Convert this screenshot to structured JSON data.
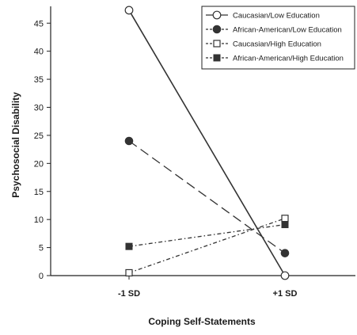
{
  "chart_data": {
    "type": "line",
    "xlabel": "Coping Self-Statements",
    "ylabel": "Psychosocial Disability",
    "categories": [
      "-1 SD",
      "+1 SD"
    ],
    "ylim": [
      0,
      48
    ],
    "yticks": [
      0,
      5,
      10,
      15,
      20,
      25,
      30,
      35,
      40,
      45
    ],
    "grid": false,
    "legend_position": "top-right",
    "series": [
      {
        "name": "Caucasian/Low Education",
        "values": [
          47.3,
          0
        ],
        "marker": "open-circle",
        "line_style": "solid",
        "color": "#333333"
      },
      {
        "name": "African-American/Low Education",
        "values": [
          24,
          4
        ],
        "marker": "filled-circle",
        "line_style": "long-dash",
        "color": "#333333"
      },
      {
        "name": "Caucasian/High Education",
        "values": [
          0.5,
          10.2
        ],
        "marker": "open-square",
        "line_style": "dash-dot",
        "color": "#333333"
      },
      {
        "name": "African-American/High Education",
        "values": [
          5.2,
          9.1
        ],
        "marker": "filled-square",
        "line_style": "dash-dot",
        "color": "#333333"
      }
    ]
  }
}
